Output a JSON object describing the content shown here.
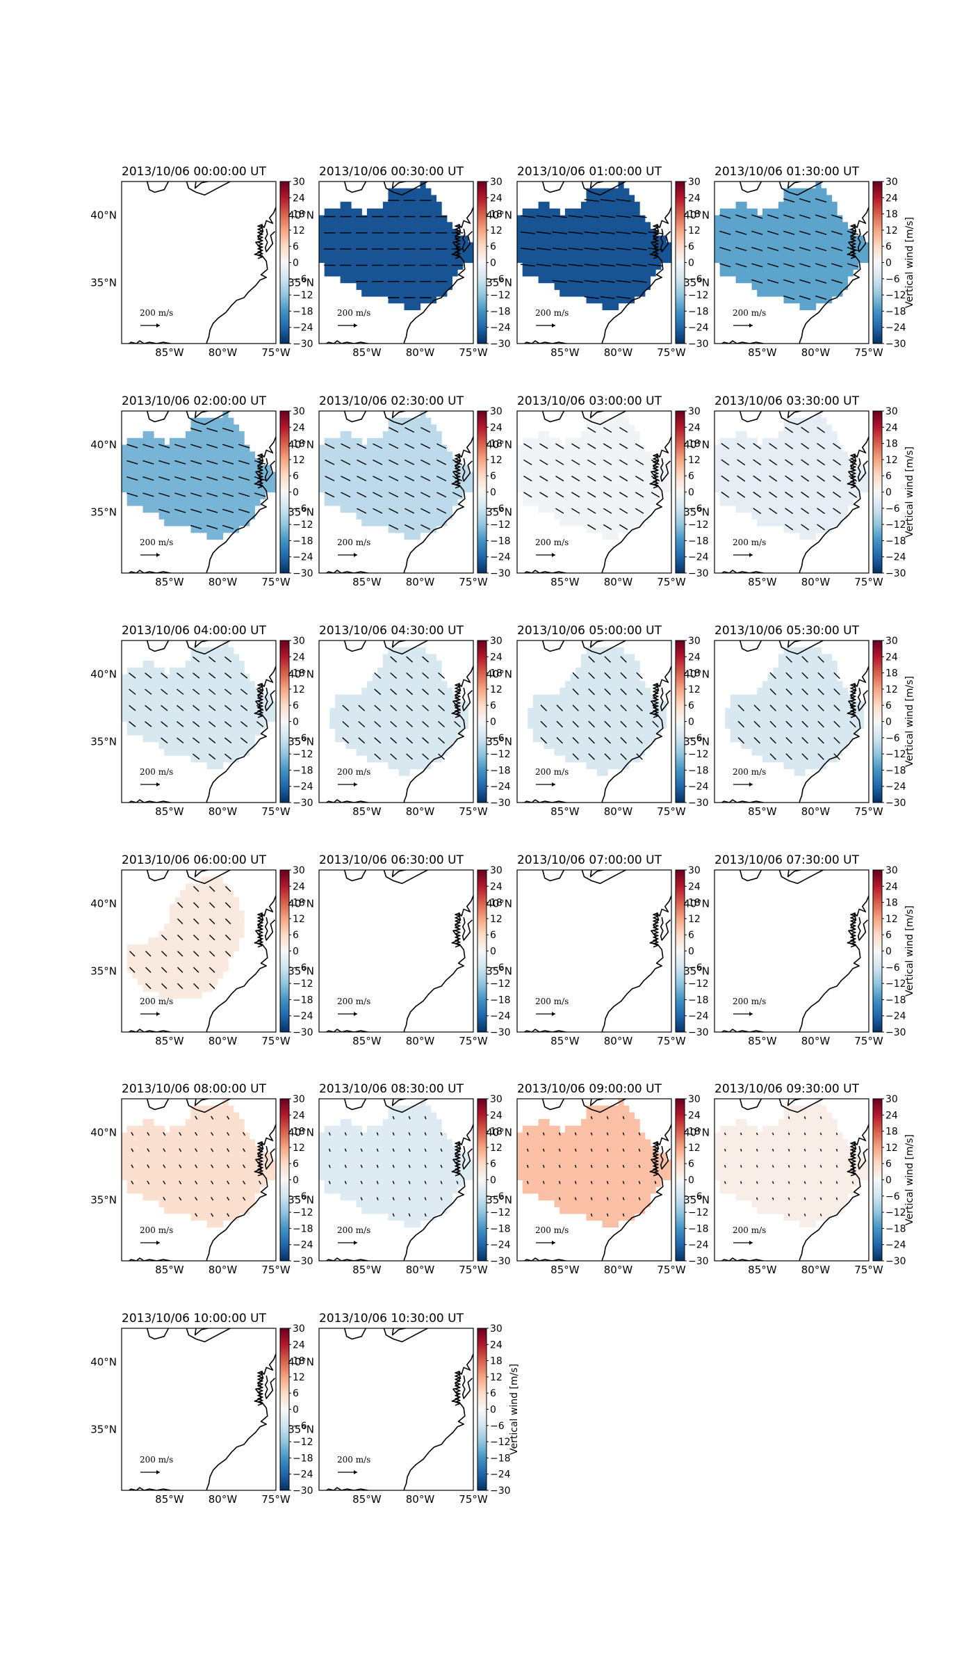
{
  "figure": {
    "colorbar": {
      "label": "Vertical wind [m/s]",
      "ticks": [
        "30",
        "24",
        "18",
        "12",
        "6",
        "0",
        "−6",
        "−12",
        "−18",
        "−24",
        "−30"
      ],
      "range": [
        -30,
        30
      ],
      "colormap": "RdBu_r",
      "colors": [
        "#053061",
        "#2166ac",
        "#4393c3",
        "#92c5de",
        "#d1e5f0",
        "#f7f7f7",
        "#fddbc7",
        "#f4a582",
        "#d6604d",
        "#b2182b",
        "#67001f"
      ]
    },
    "axes": {
      "x_ticks": [
        "85°W",
        "80°W",
        "75°W"
      ],
      "y_ticks": [
        "40°N",
        "35°N"
      ],
      "lon_range": [
        -89.5,
        -75
      ],
      "lat_range": [
        30.5,
        42.5
      ]
    },
    "reference_arrow": {
      "value": "200",
      "unit": "m/s"
    },
    "panels": [
      {
        "title": "2013/10/06 00:00:00 UT",
        "vertical_wind": null,
        "region": "none",
        "arrows": {
          "length": 0,
          "slope": 0
        }
      },
      {
        "title": "2013/10/06 00:30:00 UT",
        "vertical_wind": -26,
        "region": "wide",
        "arrows": {
          "length": 0.55,
          "slope": 0.0
        }
      },
      {
        "title": "2013/10/06 01:00:00 UT",
        "vertical_wind": -26,
        "region": "wide",
        "arrows": {
          "length": 0.7,
          "slope": 0.12
        }
      },
      {
        "title": "2013/10/06 01:30:00 UT",
        "vertical_wind": -16,
        "region": "wide",
        "arrows": {
          "length": 0.55,
          "slope": 0.3
        }
      },
      {
        "title": "2013/10/06 02:00:00 UT",
        "vertical_wind": -14,
        "region": "wide",
        "arrows": {
          "length": 0.55,
          "slope": 0.3
        }
      },
      {
        "title": "2013/10/06 02:30:00 UT",
        "vertical_wind": -8,
        "region": "wide",
        "arrows": {
          "length": 0.5,
          "slope": 0.5
        }
      },
      {
        "title": "2013/10/06 03:00:00 UT",
        "vertical_wind": -1,
        "region": "wide",
        "arrows": {
          "length": 0.45,
          "slope": 0.6
        }
      },
      {
        "title": "2013/10/06 03:30:00 UT",
        "vertical_wind": -3,
        "region": "wide",
        "arrows": {
          "length": 0.45,
          "slope": 0.7
        }
      },
      {
        "title": "2013/10/06 04:00:00 UT",
        "vertical_wind": -5,
        "region": "wide",
        "arrows": {
          "length": 0.4,
          "slope": 0.8
        }
      },
      {
        "title": "2013/10/06 04:30:00 UT",
        "vertical_wind": -5,
        "region": "shifted",
        "arrows": {
          "length": 0.4,
          "slope": 0.9
        }
      },
      {
        "title": "2013/10/06 05:00:00 UT",
        "vertical_wind": -5,
        "region": "shifted",
        "arrows": {
          "length": 0.4,
          "slope": 1.0
        }
      },
      {
        "title": "2013/10/06 05:30:00 UT",
        "vertical_wind": -5,
        "region": "shifted",
        "arrows": {
          "length": 0.4,
          "slope": 1.0
        }
      },
      {
        "title": "2013/10/06 06:00:00 UT",
        "vertical_wind": 3,
        "region": "partial",
        "arrows": {
          "length": 0.35,
          "slope": 1.0
        }
      },
      {
        "title": "2013/10/06 06:30:00 UT",
        "vertical_wind": null,
        "region": "none",
        "arrows": {
          "length": 0,
          "slope": 0
        }
      },
      {
        "title": "2013/10/06 07:00:00 UT",
        "vertical_wind": null,
        "region": "none",
        "arrows": {
          "length": 0,
          "slope": 0
        }
      },
      {
        "title": "2013/10/06 07:30:00 UT",
        "vertical_wind": null,
        "region": "none",
        "arrows": {
          "length": 0,
          "slope": 0
        }
      },
      {
        "title": "2013/10/06 08:00:00 UT",
        "vertical_wind": 5,
        "region": "wide",
        "arrows": {
          "length": 0.18,
          "slope": 1.6
        }
      },
      {
        "title": "2013/10/06 08:30:00 UT",
        "vertical_wind": -4,
        "region": "wide",
        "arrows": {
          "length": 0.15,
          "slope": 2.5
        }
      },
      {
        "title": "2013/10/06 09:00:00 UT",
        "vertical_wind": 9,
        "region": "wide",
        "arrows": {
          "length": 0.14,
          "slope": 3.0
        }
      },
      {
        "title": "2013/10/06 09:30:00 UT",
        "vertical_wind": 2,
        "region": "wide",
        "arrows": {
          "length": 0.12,
          "slope": 3.0
        }
      },
      {
        "title": "2013/10/06 10:00:00 UT",
        "vertical_wind": null,
        "region": "none",
        "arrows": {
          "length": 0,
          "slope": 0
        }
      },
      {
        "title": "2013/10/06 10:30:00 UT",
        "vertical_wind": null,
        "region": "none",
        "arrows": {
          "length": 0,
          "slope": 0
        }
      }
    ]
  }
}
